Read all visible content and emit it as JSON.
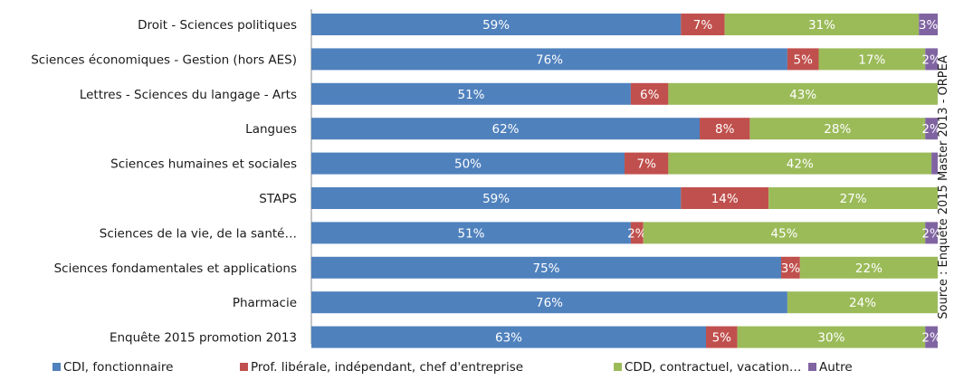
{
  "chart_data": {
    "type": "bar",
    "orientation": "horizontal",
    "stacked": true,
    "percent_stacked": true,
    "categories": [
      "Droit - Sciences politiques",
      "Sciences économiques - Gestion (hors AES)",
      "Lettres - Sciences du langage - Arts",
      "Langues",
      "Sciences humaines et sociales",
      "STAPS",
      "Sciences de la vie, de la santé…",
      "Sciences fondamentales et applications",
      "Pharmacie",
      "Enquête 2015 promotion 2013"
    ],
    "series": [
      {
        "name": "CDI, fonctionnaire",
        "color": "#4f81bd",
        "values": [
          59,
          76,
          51,
          62,
          50,
          59,
          51,
          75,
          76,
          63
        ],
        "labels": [
          "59%",
          "76%",
          "51%",
          "62%",
          "50%",
          "59%",
          "51%",
          "75%",
          "76%",
          "63%"
        ]
      },
      {
        "name": "Prof. libérale, indépendant, chef d'entreprise",
        "color": "#c0504d",
        "values": [
          7,
          5,
          6,
          8,
          7,
          14,
          2,
          3,
          0,
          5
        ],
        "labels": [
          "7%",
          "5%",
          "6%",
          "8%",
          "7%",
          "14%",
          "2%",
          "3%",
          "",
          "5%"
        ]
      },
      {
        "name": "CDD, contractuel, vacation…",
        "color": "#9bbb59",
        "values": [
          31,
          17,
          43,
          28,
          42,
          27,
          45,
          22,
          24,
          30
        ],
        "labels": [
          "31%",
          "17%",
          "43%",
          "28%",
          "42%",
          "27%",
          "45%",
          "22%",
          "24%",
          "30%"
        ]
      },
      {
        "name": "Autre",
        "color": "#8064a2",
        "values": [
          3,
          2,
          0,
          2,
          1,
          0,
          2,
          0,
          0,
          2
        ],
        "labels": [
          "3%",
          "2%",
          "",
          "2%",
          "",
          "",
          "2%",
          "",
          "",
          "2%"
        ]
      }
    ],
    "xlim": [
      0,
      100
    ],
    "grid": false,
    "legend_position": "bottom",
    "source_note": "Source : Enquête 2015 Master 2013 - ORPEA"
  }
}
